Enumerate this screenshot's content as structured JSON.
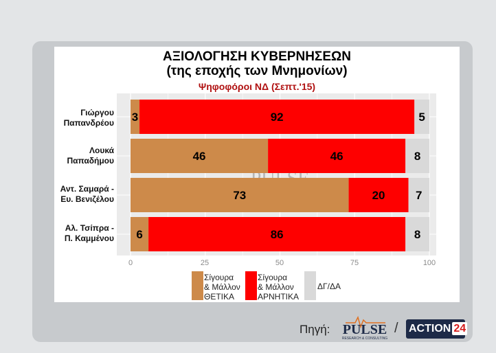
{
  "header": {
    "title_line1": "ΑΞΙΟΛΟΓΗΣΗ ΚΥΒΕΡΝΗΣΕΩΝ",
    "title_line2": "(της εποχής των Μνημονίων)",
    "subtitle": "Ψηφοφόροι ΝΔ (Σεπτ.'15)"
  },
  "chart_data": {
    "type": "bar",
    "orientation": "horizontal",
    "stacked": true,
    "categories": [
      [
        "Γιώργου",
        "Παπανδρέου"
      ],
      [
        "Λουκά",
        "Παπαδήμου"
      ],
      [
        "Αντ. Σαμαρά -",
        "Ευ. Βενιζέλου"
      ],
      [
        "Αλ. Τσίπρα -",
        "Π. Καμμένου"
      ]
    ],
    "series": [
      {
        "name": "Σίγουρα & Μάλλον ΘΕΤΙΚΑ",
        "values": [
          3,
          46,
          73,
          6
        ],
        "color": "#cd8a4a"
      },
      {
        "name": "Σίγουρα & Μάλλον ΑΡΝΗΤΙΚΑ",
        "values": [
          92,
          46,
          20,
          86
        ],
        "color": "#fe0000"
      },
      {
        "name": "ΔΓ/ΔΑ",
        "values": [
          5,
          8,
          7,
          8
        ],
        "color": "#d9d9d9"
      }
    ],
    "bar_extents": [
      {
        "start": 0,
        "positive_end": 3,
        "negative_end": 95,
        "total_end": 100
      },
      {
        "start": 0,
        "positive_end": 46,
        "negative_end": 92,
        "total_end": 100
      },
      {
        "start": 0,
        "positive_end": 73,
        "negative_end": 93,
        "total_end": 100
      },
      {
        "start": 0,
        "positive_end": 6,
        "negative_end": 92,
        "total_end": 100
      }
    ],
    "xlim": [
      0,
      100
    ],
    "xticks": [
      0,
      25,
      50,
      75,
      100
    ],
    "legend_labels": [
      "Σίγουρα\n& Μάλλον\nΘΕΤΙΚΑ",
      "Σίγουρα\n& Μάλλον\nΑΡΝΗΤΙΚΑ",
      "ΔΓ/ΔΑ"
    ],
    "legend_position": "bottom",
    "grid": true
  },
  "watermark": {
    "brand": "PULSE",
    "tagline": "RESEARCH & CONSULTING"
  },
  "footer": {
    "source_label": "Πηγή:",
    "separator": "/",
    "pulse_logo_text": "PULSE",
    "pulse_logo_tagline": "RESEARCH & CONSULTING",
    "action_logo_text": "ACTION",
    "action_logo_number": "24"
  },
  "colors": {
    "positive": "#cd8a4a",
    "negative": "#fe0000",
    "neutral": "#d9d9d9",
    "plot_bg": "#ebebeb"
  }
}
